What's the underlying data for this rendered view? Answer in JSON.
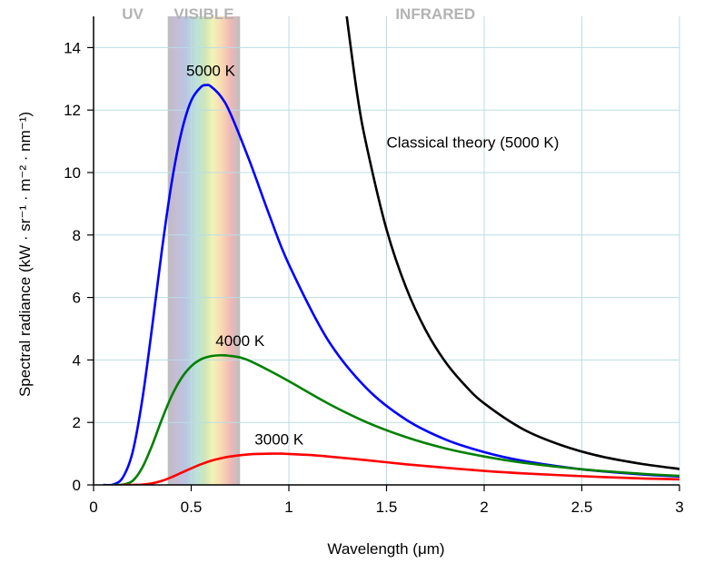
{
  "chart_data": {
    "type": "line",
    "xlabel": "Wavelength (μm)",
    "ylabel": "Spectral radiance (kW · sr⁻¹ · m⁻² · nm⁻¹)",
    "xlim": [
      0,
      3
    ],
    "ylim": [
      0,
      15
    ],
    "x_ticks": [
      0,
      0.5,
      1,
      1.5,
      2,
      2.5,
      3
    ],
    "x_tick_labels": [
      "0",
      "0.5",
      "1",
      "1.5",
      "2",
      "2.5",
      "3"
    ],
    "y_ticks": [
      0,
      2,
      4,
      6,
      8,
      10,
      12,
      14
    ],
    "y_tick_labels": [
      "0",
      "2",
      "4",
      "6",
      "8",
      "10",
      "12",
      "14"
    ],
    "grid": true,
    "regions": [
      {
        "label": "UV",
        "x_center": 0.2
      },
      {
        "label": "VISIBLE",
        "x_range": [
          0.38,
          0.75
        ]
      },
      {
        "label": "INFRARED",
        "x_center": 1.75
      }
    ],
    "series": [
      {
        "name": "5000 K",
        "color": "#0000ff",
        "label_at": [
          0.6,
          13.1
        ],
        "x": [
          0.05,
          0.1,
          0.15,
          0.2,
          0.25,
          0.3,
          0.35,
          0.4,
          0.45,
          0.5,
          0.55,
          0.58,
          0.6,
          0.65,
          0.7,
          0.8,
          0.9,
          1.0,
          1.2,
          1.4,
          1.6,
          1.8,
          2.0,
          2.2,
          2.5,
          2.8,
          3.0
        ],
        "y": [
          0,
          0.01,
          0.24,
          1.05,
          2.75,
          5.06,
          7.52,
          9.68,
          11.29,
          12.3,
          12.74,
          12.8,
          12.76,
          12.45,
          11.9,
          10.35,
          8.64,
          7.06,
          4.64,
          3.08,
          2.09,
          1.46,
          1.05,
          0.77,
          0.5,
          0.34,
          0.27
        ]
      },
      {
        "name": "4000 K",
        "color": "#008000",
        "label_at": [
          0.75,
          4.45
        ],
        "x": [
          0.1,
          0.15,
          0.2,
          0.25,
          0.3,
          0.35,
          0.4,
          0.45,
          0.5,
          0.55,
          0.6,
          0.65,
          0.7,
          0.725,
          0.75,
          0.8,
          0.9,
          1.0,
          1.2,
          1.4,
          1.6,
          1.8,
          2.0,
          2.2,
          2.5,
          2.8,
          3.0
        ],
        "y": [
          0,
          0.01,
          0.13,
          0.56,
          1.27,
          2.1,
          2.85,
          3.42,
          3.8,
          4.02,
          4.12,
          4.15,
          4.13,
          4.11,
          4.08,
          3.97,
          3.66,
          3.32,
          2.61,
          2.0,
          1.53,
          1.17,
          0.91,
          0.71,
          0.5,
          0.36,
          0.29
        ]
      },
      {
        "name": "3000 K",
        "color": "#ff0000",
        "label_at": [
          0.95,
          1.3
        ],
        "x": [
          0.15,
          0.2,
          0.25,
          0.3,
          0.35,
          0.4,
          0.45,
          0.5,
          0.55,
          0.6,
          0.65,
          0.7,
          0.8,
          0.9,
          0.966,
          1.0,
          1.1,
          1.2,
          1.4,
          1.6,
          1.8,
          2.0,
          2.2,
          2.5,
          2.8,
          3.0
        ],
        "y": [
          0,
          0.0,
          0.01,
          0.05,
          0.13,
          0.25,
          0.39,
          0.53,
          0.66,
          0.77,
          0.85,
          0.91,
          0.98,
          1.0,
          1.0,
          0.99,
          0.96,
          0.91,
          0.79,
          0.66,
          0.55,
          0.45,
          0.37,
          0.28,
          0.21,
          0.18
        ]
      },
      {
        "name": "Classical theory (5000 K)",
        "color": "#000000",
        "label_at": [
          1.5,
          10.8
        ],
        "x": [
          1.29,
          1.35,
          1.4,
          1.5,
          1.6,
          1.7,
          1.8,
          1.9,
          2.0,
          2.2,
          2.4,
          2.6,
          2.8,
          3.0
        ],
        "y": [
          15.3,
          12.5,
          10.8,
          8.18,
          6.32,
          4.96,
          3.95,
          3.2,
          2.61,
          1.78,
          1.26,
          0.91,
          0.68,
          0.51
        ]
      }
    ]
  }
}
